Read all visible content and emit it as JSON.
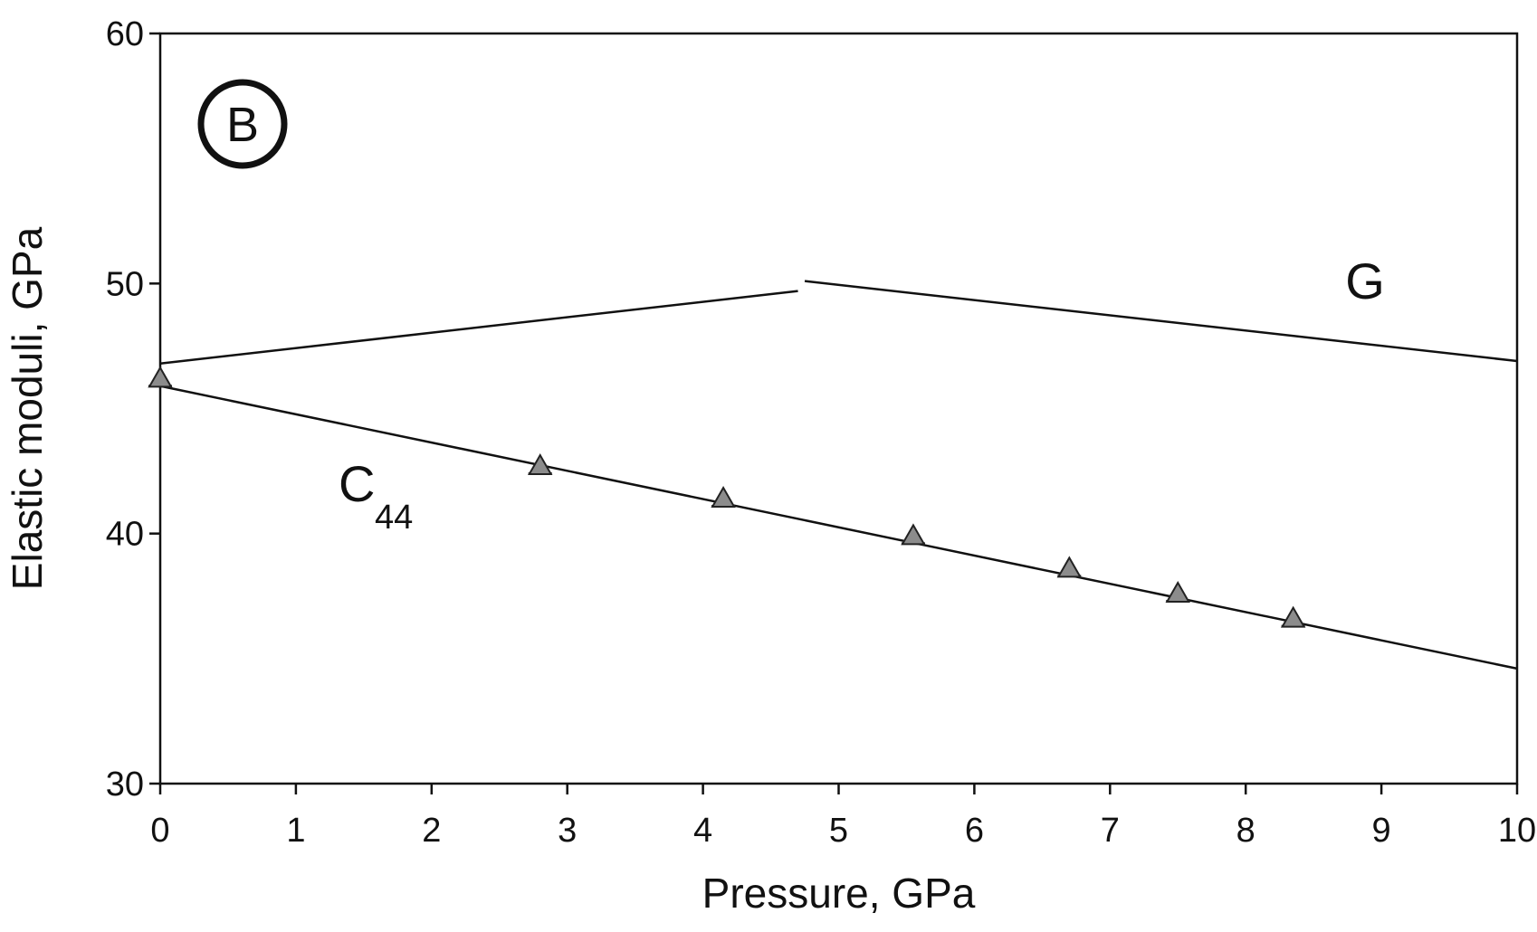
{
  "panel_label": "B",
  "colors": {
    "axis": "#111111",
    "line": "#111111",
    "marker_fill": "#8c8c8c",
    "marker_stroke": "#222222"
  },
  "chart_data": {
    "type": "line",
    "xlabel": "Pressure, GPa",
    "ylabel": "Elastic moduli, GPa",
    "xlim": [
      0,
      10
    ],
    "ylim": [
      30,
      60
    ],
    "xticks": [
      0,
      1,
      2,
      3,
      4,
      5,
      6,
      7,
      8,
      9,
      10
    ],
    "yticks": [
      30,
      40,
      50,
      60
    ],
    "grid": false,
    "series": [
      {
        "name": "G",
        "kind": "line",
        "segments": [
          {
            "x": [
              0,
              4.7
            ],
            "y": [
              46.8,
              49.7
            ]
          },
          {
            "x": [
              4.75,
              10
            ],
            "y": [
              50.1,
              46.9
            ]
          }
        ]
      },
      {
        "name": "C",
        "subscript": "44",
        "kind": "line+markers",
        "line": {
          "x": [
            0,
            10
          ],
          "y": [
            45.9,
            34.6
          ]
        },
        "points": {
          "x": [
            0,
            2.8,
            4.15,
            5.55,
            6.7,
            7.5,
            8.35
          ],
          "y": [
            46.2,
            42.7,
            41.4,
            39.9,
            38.6,
            37.6,
            36.6
          ]
        },
        "marker": "triangle"
      }
    ]
  }
}
